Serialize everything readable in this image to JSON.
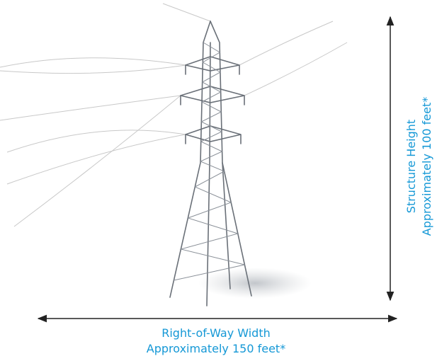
{
  "vertical_label": {
    "line1": "Structure Height",
    "line2": "Approximately 100 feet*"
  },
  "horizontal_label": {
    "line1": "Right-of-Way Width",
    "line2": "Approximately 150 feet*"
  }
}
